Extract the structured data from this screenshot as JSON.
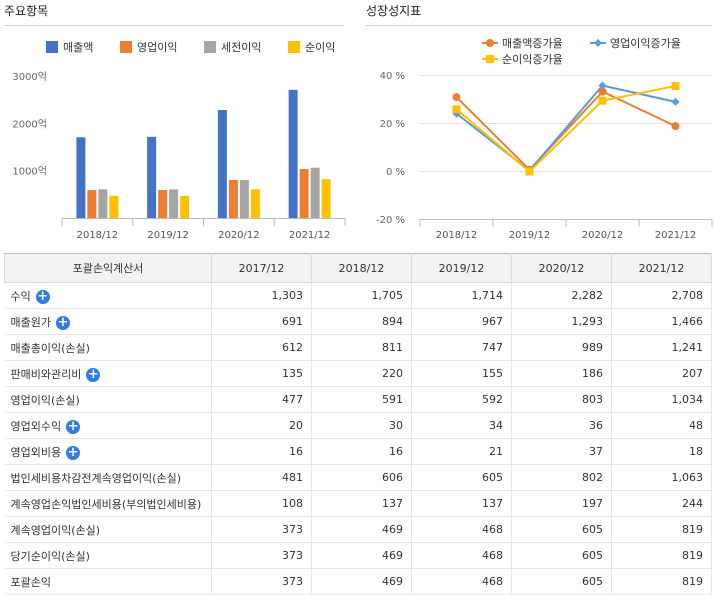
{
  "left_title": "주요항목",
  "right_title": "성장성지표",
  "chart_data": [
    {
      "type": "bar",
      "categories": [
        "2018/12",
        "2019/12",
        "2020/12",
        "2021/12"
      ],
      "series": [
        {
          "name": "매출액",
          "values": [
            1705,
            1714,
            2282,
            2708
          ],
          "color": "#4472c4"
        },
        {
          "name": "영업이익",
          "values": [
            591,
            592,
            803,
            1034
          ],
          "color": "#ed7d31"
        },
        {
          "name": "세전이익",
          "values": [
            606,
            605,
            802,
            1063
          ],
          "color": "#a5a5a5"
        },
        {
          "name": "순이익",
          "values": [
            469,
            468,
            605,
            819
          ],
          "color": "#ffc000"
        }
      ],
      "yticks": [
        "3000억",
        "2000억",
        "1000억"
      ],
      "ylim": [
        0,
        3000
      ],
      "legend": "top",
      "grid": false
    },
    {
      "type": "line",
      "categories": [
        "2018/12",
        "2019/12",
        "2020/12",
        "2021/12"
      ],
      "series": [
        {
          "name": "매출액증가율",
          "values": [
            30.8,
            0.5,
            33.1,
            18.7
          ],
          "color": "#ed7d31",
          "marker": "circle"
        },
        {
          "name": "영업이익증가율",
          "values": [
            23.9,
            0.2,
            35.6,
            28.8
          ],
          "color": "#5b9bd5",
          "marker": "diamond"
        },
        {
          "name": "순이익증가율",
          "values": [
            25.7,
            -0.2,
            29.3,
            35.4
          ],
          "color": "#ffc000",
          "marker": "square"
        }
      ],
      "yticks": [
        "40 %",
        "20 %",
        "0 %",
        "-20 %"
      ],
      "ylim": [
        -20,
        40
      ],
      "legend": "top",
      "grid": true
    }
  ],
  "table": {
    "header": [
      "포괄손익계산서",
      "2017/12",
      "2018/12",
      "2019/12",
      "2020/12",
      "2021/12"
    ],
    "rows": [
      {
        "label": "수익",
        "expand": true,
        "values": [
          "1,303",
          "1,705",
          "1,714",
          "2,282",
          "2,708"
        ]
      },
      {
        "label": "매출원가",
        "expand": true,
        "values": [
          "691",
          "894",
          "967",
          "1,293",
          "1,466"
        ]
      },
      {
        "label": "매출총이익(손실)",
        "expand": false,
        "values": [
          "612",
          "811",
          "747",
          "989",
          "1,241"
        ]
      },
      {
        "label": "판매비와관리비",
        "expand": true,
        "values": [
          "135",
          "220",
          "155",
          "186",
          "207"
        ]
      },
      {
        "label": "영업이익(손실)",
        "expand": false,
        "values": [
          "477",
          "591",
          "592",
          "803",
          "1,034"
        ]
      },
      {
        "label": "영업외수익",
        "expand": true,
        "values": [
          "20",
          "30",
          "34",
          "36",
          "48"
        ]
      },
      {
        "label": "영업외비용",
        "expand": true,
        "values": [
          "16",
          "16",
          "21",
          "37",
          "18"
        ]
      },
      {
        "label": "법인세비용차감전계속영업이익(손실)",
        "expand": false,
        "values": [
          "481",
          "606",
          "605",
          "802",
          "1,063"
        ]
      },
      {
        "label": "계속영업손익법인세비용(부의법인세비용)",
        "expand": false,
        "values": [
          "108",
          "137",
          "137",
          "197",
          "244"
        ]
      },
      {
        "label": "계속영업이익(손실)",
        "expand": false,
        "values": [
          "373",
          "469",
          "468",
          "605",
          "819"
        ]
      },
      {
        "label": "당기순이익(손실)",
        "expand": false,
        "values": [
          "373",
          "469",
          "468",
          "605",
          "819"
        ]
      },
      {
        "label": "포괄손익",
        "expand": false,
        "values": [
          "373",
          "469",
          "468",
          "605",
          "819"
        ]
      }
    ]
  }
}
